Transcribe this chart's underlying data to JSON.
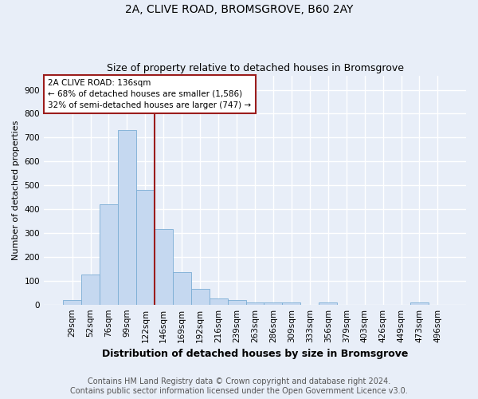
{
  "title1": "2A, CLIVE ROAD, BROMSGROVE, B60 2AY",
  "title2": "Size of property relative to detached houses in Bromsgrove",
  "xlabel": "Distribution of detached houses by size in Bromsgrove",
  "ylabel": "Number of detached properties",
  "categories": [
    "29sqm",
    "52sqm",
    "76sqm",
    "99sqm",
    "122sqm",
    "146sqm",
    "169sqm",
    "192sqm",
    "216sqm",
    "239sqm",
    "263sqm",
    "286sqm",
    "309sqm",
    "333sqm",
    "356sqm",
    "379sqm",
    "403sqm",
    "426sqm",
    "449sqm",
    "473sqm",
    "496sqm"
  ],
  "values": [
    20,
    125,
    420,
    730,
    480,
    315,
    135,
    65,
    25,
    20,
    10,
    10,
    8,
    0,
    8,
    0,
    0,
    0,
    0,
    8,
    0
  ],
  "bar_color": "#c5d8f0",
  "bar_edge_color": "#7aadd4",
  "vline_x": 4.5,
  "vline_color": "#9b1c1c",
  "annotation_text": "2A CLIVE ROAD: 136sqm\n← 68% of detached houses are smaller (1,586)\n32% of semi-detached houses are larger (747) →",
  "annotation_box_color": "#ffffff",
  "annotation_box_edge": "#9b1c1c",
  "ylim": [
    0,
    960
  ],
  "yticks": [
    0,
    100,
    200,
    300,
    400,
    500,
    600,
    700,
    800,
    900
  ],
  "footer1": "Contains HM Land Registry data © Crown copyright and database right 2024.",
  "footer2": "Contains public sector information licensed under the Open Government Licence v3.0.",
  "background_color": "#e8eef8",
  "grid_color": "#ffffff",
  "title1_fontsize": 10,
  "title2_fontsize": 9,
  "xlabel_fontsize": 9,
  "ylabel_fontsize": 8,
  "tick_fontsize": 7.5,
  "footer_fontsize": 7,
  "annot_fontsize": 7.5
}
